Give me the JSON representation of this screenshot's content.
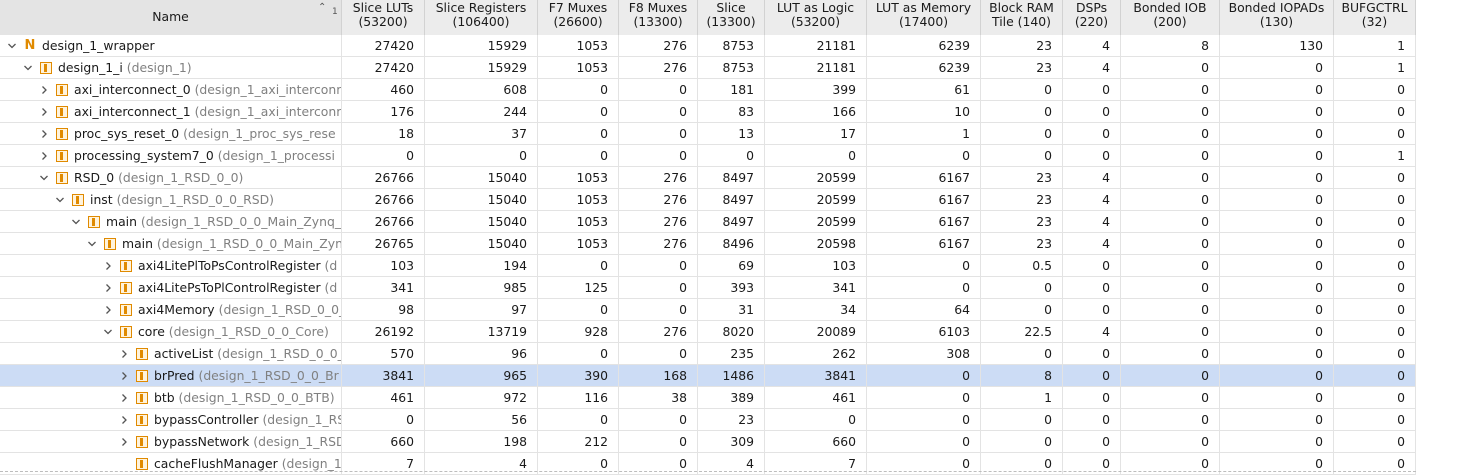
{
  "header": {
    "name": "Name",
    "sort_indicator": "1",
    "columns": [
      {
        "l1": "Slice LUTs",
        "l2": "(53200)"
      },
      {
        "l1": "Slice Registers",
        "l2": "(106400)"
      },
      {
        "l1": "F7 Muxes",
        "l2": "(26600)"
      },
      {
        "l1": "F8 Muxes",
        "l2": "(13300)"
      },
      {
        "l1": "Slice",
        "l2": "(13300)"
      },
      {
        "l1": "LUT as Logic",
        "l2": "(53200)"
      },
      {
        "l1": "LUT as Memory",
        "l2": "(17400)"
      },
      {
        "l1": "Block RAM",
        "l2": "Tile (140)"
      },
      {
        "l1": "DSPs",
        "l2": "(220)"
      },
      {
        "l1": "Bonded IOB",
        "l2": "(200)"
      },
      {
        "l1": "Bonded IOPADs",
        "l2": "(130)"
      },
      {
        "l1": "BUFGCTRL",
        "l2": "(32)"
      }
    ]
  },
  "colors": {
    "selection": "#ccdcf5",
    "instance_icon": "#e08a00",
    "module_text": "#808080"
  },
  "rows": [
    {
      "depth": 0,
      "expander": "expanded",
      "icon": "top-module-icon",
      "name": "design_1_wrapper",
      "module": "",
      "values": [
        "27420",
        "15929",
        "1053",
        "276",
        "8753",
        "21181",
        "6239",
        "23",
        "4",
        "8",
        "130",
        "1"
      ]
    },
    {
      "depth": 1,
      "expander": "expanded",
      "icon": "instance-icon",
      "name": "design_1_i",
      "module": "(design_1)",
      "values": [
        "27420",
        "15929",
        "1053",
        "276",
        "8753",
        "21181",
        "6239",
        "23",
        "4",
        "0",
        "0",
        "1"
      ]
    },
    {
      "depth": 2,
      "expander": "collapsed",
      "icon": "instance-icon",
      "name": "axi_interconnect_0",
      "module": "(design_1_axi_interconn",
      "values": [
        "460",
        "608",
        "0",
        "0",
        "181",
        "399",
        "61",
        "0",
        "0",
        "0",
        "0",
        "0"
      ]
    },
    {
      "depth": 2,
      "expander": "collapsed",
      "icon": "instance-icon",
      "name": "axi_interconnect_1",
      "module": "(design_1_axi_interconn",
      "values": [
        "176",
        "244",
        "0",
        "0",
        "83",
        "166",
        "10",
        "0",
        "0",
        "0",
        "0",
        "0"
      ]
    },
    {
      "depth": 2,
      "expander": "collapsed",
      "icon": "instance-icon",
      "name": "proc_sys_reset_0",
      "module": "(design_1_proc_sys_rese",
      "values": [
        "18",
        "37",
        "0",
        "0",
        "13",
        "17",
        "1",
        "0",
        "0",
        "0",
        "0",
        "0"
      ]
    },
    {
      "depth": 2,
      "expander": "collapsed",
      "icon": "instance-icon",
      "name": "processing_system7_0",
      "module": "(design_1_processi",
      "values": [
        "0",
        "0",
        "0",
        "0",
        "0",
        "0",
        "0",
        "0",
        "0",
        "0",
        "0",
        "1"
      ]
    },
    {
      "depth": 2,
      "expander": "expanded",
      "icon": "instance-icon",
      "name": "RSD_0",
      "module": "(design_1_RSD_0_0)",
      "values": [
        "26766",
        "15040",
        "1053",
        "276",
        "8497",
        "20599",
        "6167",
        "23",
        "4",
        "0",
        "0",
        "0"
      ]
    },
    {
      "depth": 3,
      "expander": "expanded",
      "icon": "instance-icon",
      "name": "inst",
      "module": "(design_1_RSD_0_0_RSD)",
      "values": [
        "26766",
        "15040",
        "1053",
        "276",
        "8497",
        "20599",
        "6167",
        "23",
        "4",
        "0",
        "0",
        "0"
      ]
    },
    {
      "depth": 4,
      "expander": "expanded",
      "icon": "instance-icon",
      "name": "main",
      "module": "(design_1_RSD_0_0_Main_Zynq_V",
      "values": [
        "26766",
        "15040",
        "1053",
        "276",
        "8497",
        "20599",
        "6167",
        "23",
        "4",
        "0",
        "0",
        "0"
      ]
    },
    {
      "depth": 5,
      "expander": "expanded",
      "icon": "instance-icon",
      "name": "main",
      "module": "(design_1_RSD_0_0_Main_Zyn",
      "values": [
        "26765",
        "15040",
        "1053",
        "276",
        "8496",
        "20598",
        "6167",
        "23",
        "4",
        "0",
        "0",
        "0"
      ]
    },
    {
      "depth": 6,
      "expander": "collapsed",
      "icon": "instance-icon",
      "name": "axi4LitePlToPsControlRegister",
      "module": "(d",
      "values": [
        "103",
        "194",
        "0",
        "0",
        "69",
        "103",
        "0",
        "0.5",
        "0",
        "0",
        "0",
        "0"
      ]
    },
    {
      "depth": 6,
      "expander": "collapsed",
      "icon": "instance-icon",
      "name": "axi4LitePsToPlControlRegister",
      "module": "(d",
      "values": [
        "341",
        "985",
        "125",
        "0",
        "393",
        "341",
        "0",
        "0",
        "0",
        "0",
        "0",
        "0"
      ]
    },
    {
      "depth": 6,
      "expander": "collapsed",
      "icon": "instance-icon",
      "name": "axi4Memory",
      "module": "(design_1_RSD_0_0_",
      "values": [
        "98",
        "97",
        "0",
        "0",
        "31",
        "34",
        "64",
        "0",
        "0",
        "0",
        "0",
        "0"
      ]
    },
    {
      "depth": 6,
      "expander": "expanded",
      "icon": "instance-icon",
      "name": "core",
      "module": "(design_1_RSD_0_0_Core)",
      "values": [
        "26192",
        "13719",
        "928",
        "276",
        "8020",
        "20089",
        "6103",
        "22.5",
        "4",
        "0",
        "0",
        "0"
      ]
    },
    {
      "depth": 7,
      "expander": "collapsed",
      "icon": "instance-icon",
      "name": "activeList",
      "module": "(design_1_RSD_0_0_",
      "values": [
        "570",
        "96",
        "0",
        "0",
        "235",
        "262",
        "308",
        "0",
        "0",
        "0",
        "0",
        "0"
      ]
    },
    {
      "depth": 7,
      "expander": "collapsed",
      "icon": "instance-icon",
      "name": "brPred",
      "module": "(design_1_RSD_0_0_Br",
      "values": [
        "3841",
        "965",
        "390",
        "168",
        "1486",
        "3841",
        "0",
        "8",
        "0",
        "0",
        "0",
        "0"
      ],
      "selected": true
    },
    {
      "depth": 7,
      "expander": "collapsed",
      "icon": "instance-icon",
      "name": "btb",
      "module": "(design_1_RSD_0_0_BTB)",
      "values": [
        "461",
        "972",
        "116",
        "38",
        "389",
        "461",
        "0",
        "1",
        "0",
        "0",
        "0",
        "0"
      ]
    },
    {
      "depth": 7,
      "expander": "collapsed",
      "icon": "instance-icon",
      "name": "bypassController",
      "module": "(design_1_RS",
      "values": [
        "0",
        "56",
        "0",
        "0",
        "23",
        "0",
        "0",
        "0",
        "0",
        "0",
        "0",
        "0"
      ]
    },
    {
      "depth": 7,
      "expander": "collapsed",
      "icon": "instance-icon",
      "name": "bypassNetwork",
      "module": "(design_1_RSD",
      "values": [
        "660",
        "198",
        "212",
        "0",
        "309",
        "660",
        "0",
        "0",
        "0",
        "0",
        "0",
        "0"
      ]
    },
    {
      "depth": 7,
      "expander": "none",
      "icon": "instance-icon",
      "name": "cacheFlushManager",
      "module": "(design_1",
      "values": [
        "7",
        "4",
        "0",
        "0",
        "4",
        "7",
        "0",
        "0",
        "0",
        "0",
        "0",
        "0"
      ]
    }
  ]
}
